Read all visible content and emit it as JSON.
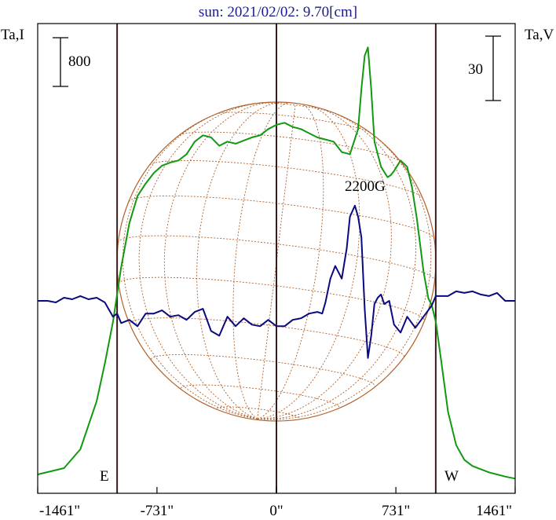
{
  "chart_data": {
    "type": "line",
    "title": "sun: 2021/02/02: 9.70[cm]",
    "left_axis_label": "Ta,I",
    "right_axis_label": "Ta,V",
    "scale_bar_left": "800",
    "scale_bar_right": "30",
    "annotation": "2200G",
    "limb_labels": {
      "east": "E",
      "west": "W"
    },
    "x_ticks": [
      {
        "value": -1461,
        "label": "-1461\""
      },
      {
        "value": -731,
        "label": "-731\""
      },
      {
        "value": 0,
        "label": "0\""
      },
      {
        "value": 731,
        "label": "731\""
      },
      {
        "value": 1461,
        "label": "1461\""
      }
    ],
    "xlim": [
      -1461,
      1461
    ],
    "vertical_lines_x": [
      -975,
      0,
      975
    ],
    "colors": {
      "intensity": "#119911",
      "polarization": "#0a0a80",
      "sun_grid": "#b0602a",
      "lines": "#3a1a1a",
      "title": "#1a1a8c"
    },
    "series": [
      {
        "key": "intensity",
        "x": [
          -1461,
          -1300,
          -1200,
          -1100,
          -1050,
          -1000,
          -975,
          -950,
          -900,
          -850,
          -800,
          -750,
          -700,
          -650,
          -600,
          -550,
          -500,
          -450,
          -400,
          -350,
          -300,
          -250,
          -200,
          -150,
          -100,
          -50,
          0,
          50,
          100,
          150,
          200,
          250,
          300,
          350,
          400,
          450,
          500,
          520,
          540,
          560,
          580,
          600,
          640,
          680,
          700,
          720,
          760,
          800,
          830,
          860,
          900,
          930,
          950,
          975,
          1000,
          1050,
          1100,
          1150,
          1200,
          1300,
          1400,
          1461
        ],
        "y": [
          30,
          60,
          150,
          380,
          560,
          760,
          890,
          1020,
          1230,
          1360,
          1420,
          1470,
          1505,
          1520,
          1530,
          1560,
          1620,
          1650,
          1640,
          1600,
          1620,
          1610,
          1625,
          1640,
          1650,
          1680,
          1700,
          1710,
          1690,
          1680,
          1660,
          1640,
          1630,
          1620,
          1570,
          1560,
          1680,
          1870,
          2030,
          2070,
          1870,
          1620,
          1500,
          1450,
          1460,
          1480,
          1530,
          1500,
          1400,
          1250,
          1000,
          870,
          840,
          760,
          620,
          330,
          170,
          100,
          70,
          40,
          20,
          10
        ]
      },
      {
        "key": "polarization",
        "x": [
          -1461,
          -1400,
          -1350,
          -1300,
          -1250,
          -1200,
          -1150,
          -1100,
          -1050,
          -1000,
          -975,
          -950,
          -900,
          -850,
          -800,
          -750,
          -700,
          -650,
          -600,
          -550,
          -500,
          -450,
          -400,
          -350,
          -300,
          -250,
          -200,
          -150,
          -100,
          -50,
          0,
          50,
          100,
          150,
          200,
          250,
          280,
          300,
          330,
          360,
          400,
          430,
          450,
          480,
          500,
          520,
          540,
          560,
          580,
          600,
          620,
          640,
          660,
          690,
          720,
          760,
          800,
          850,
          900,
          950,
          975,
          1000,
          1050,
          1100,
          1150,
          1200,
          1250,
          1300,
          1350,
          1400,
          1461
        ],
        "y": [
          0,
          0,
          -1,
          2,
          1,
          3,
          1,
          2,
          -1,
          -10,
          -8,
          -14,
          -12,
          -16,
          -8,
          -8,
          -6,
          -10,
          -9,
          -12,
          -7,
          -5,
          -19,
          -22,
          -10,
          -16,
          -11,
          -15,
          -16,
          -12,
          -16,
          -16,
          -12,
          -11,
          -8,
          -7,
          -8,
          -1,
          14,
          22,
          14,
          33,
          53,
          60,
          53,
          40,
          -5,
          -36,
          -22,
          -2,
          2,
          4,
          -2,
          0,
          -15,
          -20,
          -10,
          -17,
          -10,
          -3,
          3,
          3,
          3,
          6,
          5,
          6,
          4,
          3,
          5,
          0,
          0
        ]
      }
    ]
  }
}
